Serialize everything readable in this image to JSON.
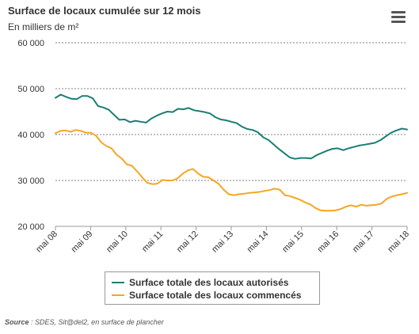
{
  "chart_data": {
    "type": "line",
    "title": "Surface de locaux cumulée sur 12 mois",
    "subtitle": "En milliers de m²",
    "xlabel": "",
    "ylabel": "",
    "ylim": [
      20000,
      60000
    ],
    "yticks": [
      20000,
      30000,
      40000,
      50000,
      60000
    ],
    "ytick_labels": [
      "20 000",
      "30 000",
      "40 000",
      "50 000",
      "60 000"
    ],
    "xticks": [
      "mai 08",
      "mai 09",
      "mai 10",
      "mai 11",
      "mai 12",
      "mai 13",
      "mai 14",
      "mai 15",
      "mai 16",
      "mai 17",
      "mai 18"
    ],
    "x_start": "mai 08",
    "x_end": "mai 18",
    "grid": true,
    "legend_position": "bottom",
    "series": [
      {
        "name": "Surface totale des locaux autorisés",
        "color": "#1a7f73",
        "values": [
          48000,
          48700,
          48200,
          47800,
          47700,
          48400,
          48400,
          47900,
          46200,
          45900,
          45400,
          44300,
          43200,
          43300,
          42700,
          43000,
          42800,
          42600,
          43500,
          44100,
          44600,
          45000,
          44900,
          45600,
          45500,
          45800,
          45300,
          45100,
          44900,
          44600,
          43800,
          43300,
          43100,
          42800,
          42500,
          41700,
          41200,
          41000,
          40500,
          39400,
          38800,
          37800,
          36800,
          35900,
          35000,
          34700,
          34900,
          34900,
          34800,
          35500,
          36000,
          36500,
          36900,
          37000,
          36600,
          37000,
          37300,
          37600,
          37800,
          38000,
          38200,
          38800,
          39600,
          40400,
          40900,
          41300,
          41100
        ]
      },
      {
        "name": "Surface totale des locaux commencés",
        "color": "#f5a623",
        "values": [
          40300,
          40800,
          40900,
          40600,
          41000,
          40800,
          40400,
          40400,
          39700,
          38300,
          37500,
          37000,
          35600,
          34800,
          33500,
          33200,
          32000,
          30700,
          29500,
          29200,
          29300,
          30100,
          30000,
          30000,
          30500,
          31500,
          32200,
          32500,
          31500,
          30800,
          30700,
          30000,
          29300,
          28000,
          27000,
          26800,
          27000,
          27100,
          27300,
          27400,
          27500,
          27700,
          27900,
          28200,
          28000,
          26800,
          26600,
          26200,
          25800,
          25200,
          24800,
          24000,
          23500,
          23400,
          23400,
          23500,
          23800,
          24300,
          24600,
          24300,
          24700,
          24500,
          24600,
          24700,
          25000,
          26000,
          26500,
          26800,
          27000,
          27300
        ]
      }
    ]
  },
  "source": {
    "label": "Source",
    "text": " : SDES, Sit@del2, en surface de plancher"
  },
  "menu_icon": "hamburger-menu-icon"
}
